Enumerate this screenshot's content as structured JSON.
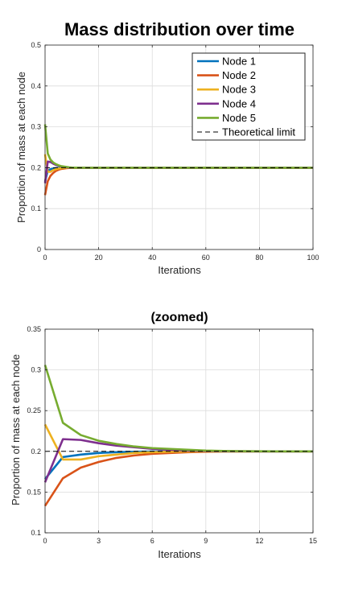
{
  "chart_data": [
    {
      "type": "line",
      "title": "Mass distribution over time",
      "xlabel": "Iterations",
      "ylabel": "Proportion of mass at each node",
      "xlim": [
        0,
        100
      ],
      "ylim": [
        0,
        0.5
      ],
      "xticks": [
        0,
        20,
        40,
        60,
        80,
        100
      ],
      "yticks": [
        0,
        0.1,
        0.2,
        0.3,
        0.4,
        0.5
      ],
      "grid": true,
      "legend_position": "top-right",
      "x": [
        0,
        1,
        2,
        3,
        4,
        5,
        6,
        7,
        8,
        9,
        10,
        11,
        12,
        13,
        14,
        15,
        20,
        30,
        40,
        50,
        60,
        70,
        80,
        90,
        100
      ],
      "series": [
        {
          "name": "Node 1",
          "color": "#0072BD",
          "values": [
            0.166,
            0.193,
            0.196,
            0.198,
            0.199,
            0.1995,
            0.1998,
            0.1999,
            0.2,
            0.2,
            0.2,
            0.2,
            0.2,
            0.2,
            0.2,
            0.2,
            0.2,
            0.2,
            0.2,
            0.2,
            0.2,
            0.2,
            0.2,
            0.2,
            0.2
          ]
        },
        {
          "name": "Node 2",
          "color": "#D95319",
          "values": [
            0.133,
            0.167,
            0.18,
            0.187,
            0.192,
            0.195,
            0.197,
            0.198,
            0.199,
            0.1995,
            0.1998,
            0.1999,
            0.2,
            0.2,
            0.2,
            0.2,
            0.2,
            0.2,
            0.2,
            0.2,
            0.2,
            0.2,
            0.2,
            0.2,
            0.2
          ]
        },
        {
          "name": "Node 3",
          "color": "#EDB120",
          "values": [
            0.233,
            0.19,
            0.19,
            0.194,
            0.196,
            0.198,
            0.199,
            0.1995,
            0.1998,
            0.1999,
            0.2,
            0.2,
            0.2,
            0.2,
            0.2,
            0.2,
            0.2,
            0.2,
            0.2,
            0.2,
            0.2,
            0.2,
            0.2,
            0.2,
            0.2
          ]
        },
        {
          "name": "Node 4",
          "color": "#7E2F8E",
          "values": [
            0.162,
            0.215,
            0.214,
            0.21,
            0.207,
            0.205,
            0.203,
            0.202,
            0.201,
            0.2005,
            0.2002,
            0.2001,
            0.2,
            0.2,
            0.2,
            0.2,
            0.2,
            0.2,
            0.2,
            0.2,
            0.2,
            0.2,
            0.2,
            0.2,
            0.2
          ]
        },
        {
          "name": "Node 5",
          "color": "#77AC30",
          "values": [
            0.306,
            0.235,
            0.22,
            0.213,
            0.209,
            0.206,
            0.204,
            0.203,
            0.202,
            0.201,
            0.2005,
            0.2002,
            0.2001,
            0.2,
            0.2,
            0.2,
            0.2,
            0.2,
            0.2,
            0.2,
            0.2,
            0.2,
            0.2,
            0.2,
            0.2
          ]
        }
      ],
      "reference_line": {
        "name": "Theoretical limit",
        "value": 0.2,
        "style": "dashed",
        "color": "#000000"
      }
    },
    {
      "type": "line",
      "title": "(zoomed)",
      "xlabel": "Iterations",
      "ylabel": "Proportion of mass at each node",
      "xlim": [
        0,
        15
      ],
      "ylim": [
        0.1,
        0.35
      ],
      "xticks": [
        0,
        3,
        6,
        9,
        12,
        15
      ],
      "yticks": [
        0.1,
        0.15,
        0.2,
        0.25,
        0.3,
        0.35
      ],
      "grid": true,
      "x": [
        0,
        1,
        2,
        3,
        4,
        5,
        6,
        7,
        8,
        9,
        10,
        11,
        12,
        13,
        14,
        15
      ],
      "series": [
        {
          "name": "Node 1",
          "color": "#0072BD",
          "values": [
            0.166,
            0.193,
            0.196,
            0.198,
            0.199,
            0.1995,
            0.1998,
            0.1999,
            0.2,
            0.2,
            0.2,
            0.2,
            0.2,
            0.2,
            0.2,
            0.2
          ]
        },
        {
          "name": "Node 2",
          "color": "#D95319",
          "values": [
            0.133,
            0.167,
            0.18,
            0.187,
            0.192,
            0.195,
            0.197,
            0.198,
            0.199,
            0.1995,
            0.1998,
            0.1999,
            0.2,
            0.2,
            0.2,
            0.2
          ]
        },
        {
          "name": "Node 3",
          "color": "#EDB120",
          "values": [
            0.233,
            0.19,
            0.19,
            0.194,
            0.196,
            0.198,
            0.199,
            0.1995,
            0.1998,
            0.1999,
            0.2,
            0.2,
            0.2,
            0.2,
            0.2,
            0.2
          ]
        },
        {
          "name": "Node 4",
          "color": "#7E2F8E",
          "values": [
            0.162,
            0.215,
            0.214,
            0.21,
            0.207,
            0.205,
            0.203,
            0.202,
            0.201,
            0.2005,
            0.2002,
            0.2001,
            0.2,
            0.2,
            0.2,
            0.2
          ]
        },
        {
          "name": "Node 5",
          "color": "#77AC30",
          "values": [
            0.306,
            0.235,
            0.22,
            0.213,
            0.209,
            0.206,
            0.204,
            0.203,
            0.202,
            0.201,
            0.2005,
            0.2002,
            0.2001,
            0.2,
            0.2,
            0.2
          ]
        }
      ],
      "reference_line": {
        "value": 0.2,
        "style": "dashed",
        "color": "#000000"
      }
    }
  ]
}
